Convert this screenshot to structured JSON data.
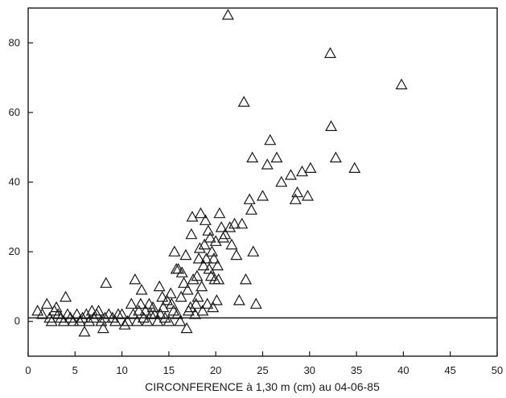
{
  "chart_data": {
    "type": "scatter",
    "title": "",
    "xlabel": "CIRCONFERENCE à 1,30 m (cm) au 04-06-85",
    "ylabel": "",
    "xlim": [
      0,
      50
    ],
    "ylim": [
      -10,
      90
    ],
    "x_ticks": [
      0,
      5,
      10,
      15,
      20,
      25,
      30,
      35,
      40,
      45,
      50
    ],
    "y_ticks": [
      0,
      20,
      40,
      60,
      80
    ],
    "x_tick_labels": [
      "0",
      "5",
      "10",
      "15",
      "20",
      "25",
      "30",
      "35",
      "40",
      "45",
      "50"
    ],
    "y_tick_labels": [
      "0",
      "20",
      "40",
      "60",
      "80"
    ],
    "reference_line_y": 1,
    "marker": "triangle",
    "grid": false,
    "points": [
      [
        1.0,
        3
      ],
      [
        1.5,
        2
      ],
      [
        2.0,
        5
      ],
      [
        2.3,
        1
      ],
      [
        2.5,
        0
      ],
      [
        2.8,
        3
      ],
      [
        3.0,
        4
      ],
      [
        3.2,
        2
      ],
      [
        3.5,
        1
      ],
      [
        3.8,
        0
      ],
      [
        4.0,
        7
      ],
      [
        4.2,
        2
      ],
      [
        4.5,
        1
      ],
      [
        4.8,
        0
      ],
      [
        5.2,
        2
      ],
      [
        5.5,
        0
      ],
      [
        5.8,
        1
      ],
      [
        6.0,
        -3
      ],
      [
        6.2,
        2
      ],
      [
        6.5,
        0
      ],
      [
        6.8,
        3
      ],
      [
        7.0,
        1
      ],
      [
        7.3,
        2
      ],
      [
        7.5,
        3
      ],
      [
        7.8,
        0
      ],
      [
        8.0,
        -2
      ],
      [
        8.2,
        1
      ],
      [
        8.3,
        11
      ],
      [
        8.6,
        2
      ],
      [
        9.0,
        1
      ],
      [
        9.3,
        0
      ],
      [
        9.6,
        2
      ],
      [
        10.0,
        2
      ],
      [
        10.3,
        -1
      ],
      [
        10.6,
        0
      ],
      [
        11.0,
        5
      ],
      [
        11.2,
        2
      ],
      [
        11.4,
        12
      ],
      [
        11.6,
        0
      ],
      [
        11.8,
        3
      ],
      [
        12.0,
        5
      ],
      [
        12.1,
        9
      ],
      [
        12.3,
        1
      ],
      [
        12.5,
        3
      ],
      [
        12.7,
        0
      ],
      [
        12.9,
        5
      ],
      [
        13.1,
        2
      ],
      [
        13.3,
        4
      ],
      [
        13.5,
        2
      ],
      [
        13.8,
        0
      ],
      [
        14.0,
        10
      ],
      [
        14.1,
        2
      ],
      [
        14.3,
        7
      ],
      [
        14.4,
        4
      ],
      [
        14.6,
        1
      ],
      [
        14.8,
        6
      ],
      [
        15.0,
        0
      ],
      [
        15.2,
        8
      ],
      [
        15.3,
        5
      ],
      [
        15.5,
        3
      ],
      [
        15.6,
        20
      ],
      [
        15.8,
        15
      ],
      [
        15.9,
        2
      ],
      [
        16.0,
        15
      ],
      [
        16.2,
        0
      ],
      [
        16.3,
        7
      ],
      [
        16.4,
        14
      ],
      [
        16.6,
        11
      ],
      [
        16.8,
        19
      ],
      [
        16.9,
        -2
      ],
      [
        17.0,
        9
      ],
      [
        17.1,
        3
      ],
      [
        17.3,
        4
      ],
      [
        17.4,
        25
      ],
      [
        17.5,
        30
      ],
      [
        17.6,
        12
      ],
      [
        17.8,
        2
      ],
      [
        17.9,
        5
      ],
      [
        18.0,
        13
      ],
      [
        18.1,
        7
      ],
      [
        18.2,
        18
      ],
      [
        18.3,
        21
      ],
      [
        18.4,
        31
      ],
      [
        18.5,
        10
      ],
      [
        18.6,
        3
      ],
      [
        18.7,
        16
      ],
      [
        18.8,
        22
      ],
      [
        18.9,
        29
      ],
      [
        19.0,
        18
      ],
      [
        19.1,
        5
      ],
      [
        19.2,
        26
      ],
      [
        19.3,
        15
      ],
      [
        19.4,
        24
      ],
      [
        19.5,
        13
      ],
      [
        19.6,
        20
      ],
      [
        19.7,
        4
      ],
      [
        19.8,
        18
      ],
      [
        19.9,
        12
      ],
      [
        20.0,
        23
      ],
      [
        20.1,
        6
      ],
      [
        20.2,
        16
      ],
      [
        20.3,
        12
      ],
      [
        20.4,
        31
      ],
      [
        20.6,
        27
      ],
      [
        20.8,
        24
      ],
      [
        21.0,
        25
      ],
      [
        21.3,
        88
      ],
      [
        21.5,
        27
      ],
      [
        21.7,
        22
      ],
      [
        22.0,
        28
      ],
      [
        22.2,
        19
      ],
      [
        22.5,
        6
      ],
      [
        22.8,
        28
      ],
      [
        23.0,
        63
      ],
      [
        23.2,
        12
      ],
      [
        23.6,
        35
      ],
      [
        23.8,
        32
      ],
      [
        23.9,
        47
      ],
      [
        24.0,
        20
      ],
      [
        24.3,
        5
      ],
      [
        25.0,
        36
      ],
      [
        25.5,
        45
      ],
      [
        25.8,
        52
      ],
      [
        26.5,
        47
      ],
      [
        27.0,
        40
      ],
      [
        28.0,
        42
      ],
      [
        28.5,
        35
      ],
      [
        28.7,
        37
      ],
      [
        29.2,
        43
      ],
      [
        29.8,
        36
      ],
      [
        30.1,
        44
      ],
      [
        32.2,
        77
      ],
      [
        32.3,
        56
      ],
      [
        32.8,
        47
      ],
      [
        34.8,
        44
      ],
      [
        39.8,
        68
      ]
    ]
  }
}
